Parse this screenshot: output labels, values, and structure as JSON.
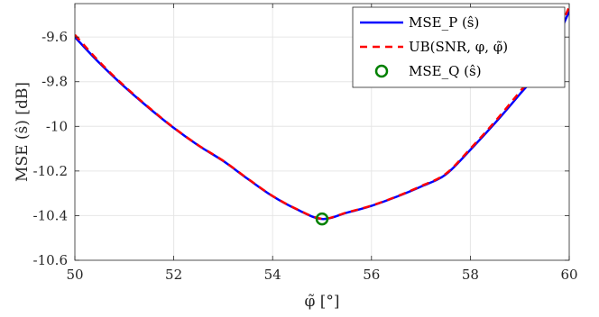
{
  "chart_data": {
    "type": "line",
    "xlabel": "φ̃ [°]",
    "ylabel": "MSE (ŝ) [dB]",
    "xlim": [
      50,
      60
    ],
    "ylim": [
      -10.6,
      -9.45
    ],
    "xticks": [
      50,
      52,
      54,
      56,
      58,
      60
    ],
    "xtick_labels": [
      "50",
      "52",
      "54",
      "56",
      "58",
      "60"
    ],
    "yticks": [
      -10.6,
      -10.4,
      -10.2,
      -10.0,
      -9.8,
      -9.6
    ],
    "ytick_labels": [
      "-10.6",
      "-10.4",
      "-10.2",
      "-10",
      "-9.8",
      "-9.6"
    ],
    "grid": true,
    "legend_position": "top-right",
    "series": [
      {
        "name": "MSE_P (ŝ)",
        "style": "solid",
        "color": "#0000ff",
        "x": [
          50,
          50.5,
          51,
          51.5,
          52,
          52.5,
          53,
          53.5,
          54,
          54.5,
          55,
          55.5,
          56,
          56.5,
          57,
          57.5,
          58,
          58.5,
          59,
          59.5,
          60
        ],
        "y": [
          -9.6,
          -9.717,
          -9.822,
          -9.918,
          -10.007,
          -10.086,
          -10.155,
          -10.236,
          -10.313,
          -10.373,
          -10.415,
          -10.387,
          -10.356,
          -10.316,
          -10.27,
          -10.216,
          -10.105,
          -9.985,
          -9.856,
          -9.72,
          -9.485
        ]
      },
      {
        "name": "UB(SNR, φ, φ̃)",
        "style": "dashed",
        "color": "#ff0000",
        "x": [
          50,
          50.5,
          51,
          51.5,
          52,
          52.5,
          53,
          53.5,
          54,
          54.5,
          55,
          55.5,
          56,
          56.5,
          57,
          57.5,
          58,
          58.5,
          59,
          59.5,
          60
        ],
        "y": [
          -9.59,
          -9.712,
          -9.819,
          -9.916,
          -10.006,
          -10.085,
          -10.154,
          -10.235,
          -10.312,
          -10.372,
          -10.414,
          -10.386,
          -10.355,
          -10.315,
          -10.268,
          -10.213,
          -10.1,
          -9.978,
          -9.845,
          -9.705,
          -9.465
        ]
      },
      {
        "name": "MSE_Q (ŝ)",
        "style": "marker",
        "marker": "circle",
        "color": "#008000",
        "x": [
          55
        ],
        "y": [
          -10.415
        ]
      }
    ]
  }
}
